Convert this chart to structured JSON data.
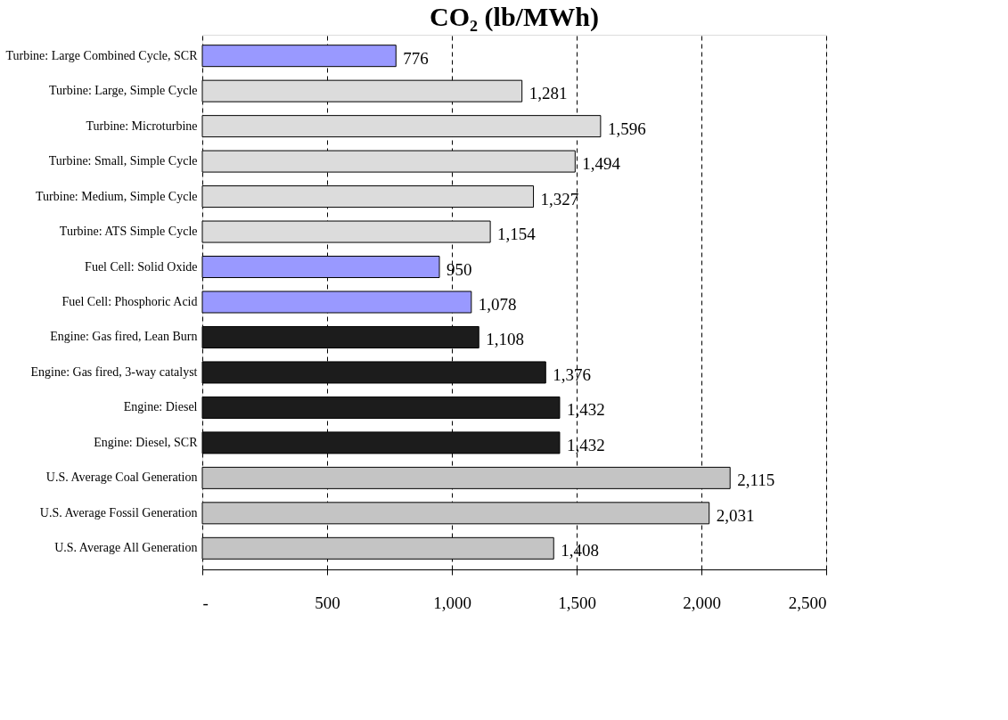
{
  "chart_data": {
    "type": "bar",
    "orientation": "horizontal",
    "title": "CO₂ (lb/MWh)",
    "categories": [
      "Turbine: Large Combined Cycle, SCR",
      "Turbine: Large, Simple Cycle",
      "Turbine: Microturbine",
      "Turbine: Small, Simple Cycle",
      "Turbine: Medium, Simple Cycle",
      "Turbine: ATS Simple Cycle",
      "Fuel Cell: Solid Oxide",
      "Fuel Cell: Phosphoric Acid",
      "Engine: Gas fired, Lean Burn",
      "Engine: Gas fired, 3-way catalyst",
      "Engine: Diesel",
      "Engine: Diesel, SCR",
      "U.S. Average Coal Generation",
      "U.S. Average Fossil Generation",
      "U.S. Average All Generation"
    ],
    "values": [
      776,
      1281,
      1596,
      1494,
      1327,
      1154,
      950,
      1078,
      1108,
      1376,
      1432,
      1432,
      2115,
      2031,
      1408
    ],
    "value_labels": [
      "776",
      "1,281",
      "1,596",
      "1,494",
      "1,327",
      "1,154",
      "950",
      "1,078",
      "1,108",
      "1,376",
      "1,432",
      "1,432",
      "2,115",
      "2,031",
      "1,408"
    ],
    "colors": [
      "#9999ff",
      "#dcdcdc",
      "#dcdcdc",
      "#dcdcdc",
      "#dcdcdc",
      "#dcdcdc",
      "#9999ff",
      "#9999ff",
      "#1c1c1c",
      "#1c1c1c",
      "#1c1c1c",
      "#1c1c1c",
      "#c4c4c4",
      "#c4c4c4",
      "#c4c4c4"
    ],
    "xlim": [
      0,
      2500
    ],
    "xticks": [
      {
        "value": 0,
        "label": "-"
      },
      500,
      {
        "value": 1000,
        "label": "1,000"
      },
      {
        "value": 1500,
        "label": "1,500"
      },
      {
        "value": 2000,
        "label": "2,000"
      },
      {
        "value": 2500,
        "label": "2,500"
      }
    ],
    "grid": "x"
  }
}
